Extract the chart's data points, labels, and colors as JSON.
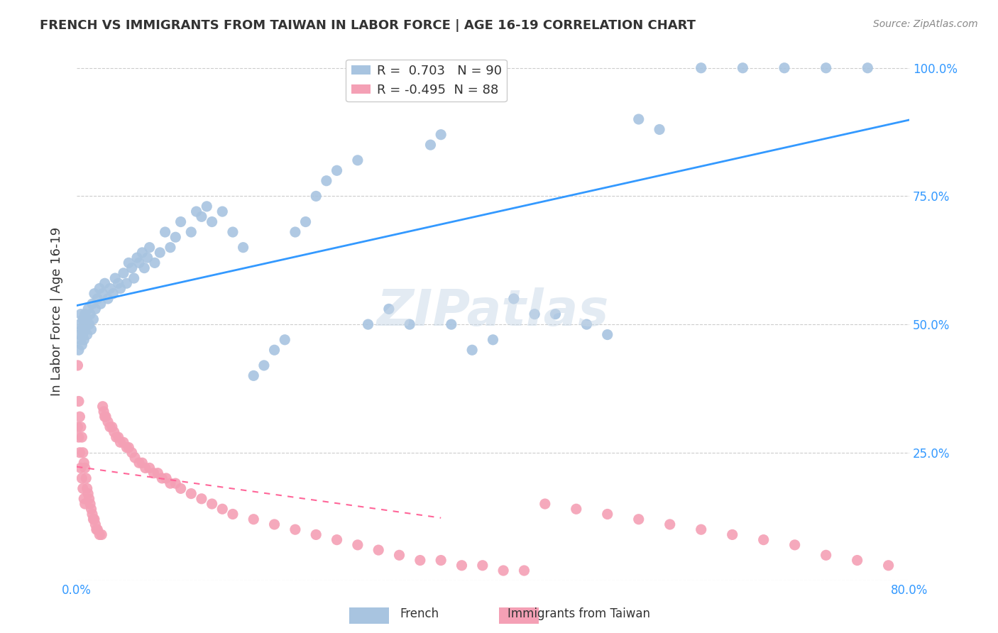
{
  "title": "FRENCH VS IMMIGRANTS FROM TAIWAN IN LABOR FORCE | AGE 16-19 CORRELATION CHART",
  "source": "Source: ZipAtlas.com",
  "xlabel_bottom": "",
  "ylabel": "In Labor Force | Age 16-19",
  "x_min": 0.0,
  "x_max": 0.8,
  "y_min": 0.0,
  "y_max": 1.05,
  "x_ticks": [
    0.0,
    0.1,
    0.2,
    0.3,
    0.4,
    0.5,
    0.6,
    0.7,
    0.8
  ],
  "x_tick_labels": [
    "0.0%",
    "",
    "",
    "",
    "",
    "",
    "",
    "",
    "80.0%"
  ],
  "y_ticks": [
    0.0,
    0.25,
    0.5,
    0.75,
    1.0
  ],
  "y_tick_labels": [
    "",
    "25.0%",
    "50.0%",
    "75.0%",
    "100.0%"
  ],
  "french_R": 0.703,
  "french_N": 90,
  "taiwan_R": -0.495,
  "taiwan_N": 88,
  "french_color": "#a8c4e0",
  "french_line_color": "#3399ff",
  "taiwan_color": "#f4a0b5",
  "taiwan_line_color": "#ff6699",
  "watermark": "ZIPatlas",
  "watermark_color": "#c8d8e8",
  "legend_french_label": "French",
  "legend_taiwan_label": "Immigrants from Taiwan",
  "french_scatter_x": [
    0.002,
    0.003,
    0.003,
    0.004,
    0.004,
    0.005,
    0.005,
    0.006,
    0.006,
    0.007,
    0.007,
    0.008,
    0.008,
    0.009,
    0.01,
    0.01,
    0.011,
    0.012,
    0.013,
    0.014,
    0.015,
    0.016,
    0.017,
    0.018,
    0.02,
    0.022,
    0.023,
    0.025,
    0.027,
    0.03,
    0.032,
    0.035,
    0.037,
    0.04,
    0.042,
    0.045,
    0.048,
    0.05,
    0.053,
    0.055,
    0.058,
    0.06,
    0.063,
    0.065,
    0.068,
    0.07,
    0.075,
    0.08,
    0.085,
    0.09,
    0.095,
    0.1,
    0.11,
    0.115,
    0.12,
    0.125,
    0.13,
    0.14,
    0.15,
    0.16,
    0.17,
    0.18,
    0.19,
    0.2,
    0.21,
    0.22,
    0.23,
    0.24,
    0.25,
    0.27,
    0.28,
    0.3,
    0.32,
    0.34,
    0.35,
    0.36,
    0.38,
    0.4,
    0.42,
    0.44,
    0.46,
    0.49,
    0.51,
    0.54,
    0.56,
    0.6,
    0.64,
    0.68,
    0.72,
    0.76
  ],
  "french_scatter_y": [
    0.45,
    0.5,
    0.48,
    0.47,
    0.52,
    0.46,
    0.49,
    0.51,
    0.48,
    0.5,
    0.47,
    0.52,
    0.49,
    0.5,
    0.48,
    0.51,
    0.53,
    0.5,
    0.52,
    0.49,
    0.54,
    0.51,
    0.56,
    0.53,
    0.55,
    0.57,
    0.54,
    0.56,
    0.58,
    0.55,
    0.57,
    0.56,
    0.59,
    0.58,
    0.57,
    0.6,
    0.58,
    0.62,
    0.61,
    0.59,
    0.63,
    0.62,
    0.64,
    0.61,
    0.63,
    0.65,
    0.62,
    0.64,
    0.68,
    0.65,
    0.67,
    0.7,
    0.68,
    0.72,
    0.71,
    0.73,
    0.7,
    0.72,
    0.68,
    0.65,
    0.4,
    0.42,
    0.45,
    0.47,
    0.68,
    0.7,
    0.75,
    0.78,
    0.8,
    0.82,
    0.5,
    0.53,
    0.5,
    0.85,
    0.87,
    0.5,
    0.45,
    0.47,
    0.55,
    0.52,
    0.52,
    0.5,
    0.48,
    0.9,
    0.88,
    1.0,
    1.0,
    1.0,
    1.0,
    1.0
  ],
  "taiwan_scatter_x": [
    0.001,
    0.001,
    0.002,
    0.002,
    0.003,
    0.003,
    0.004,
    0.004,
    0.005,
    0.005,
    0.006,
    0.006,
    0.007,
    0.007,
    0.008,
    0.008,
    0.009,
    0.01,
    0.011,
    0.012,
    0.013,
    0.014,
    0.015,
    0.016,
    0.017,
    0.018,
    0.019,
    0.02,
    0.022,
    0.024,
    0.025,
    0.026,
    0.027,
    0.028,
    0.03,
    0.032,
    0.034,
    0.036,
    0.038,
    0.04,
    0.042,
    0.045,
    0.048,
    0.05,
    0.053,
    0.056,
    0.06,
    0.063,
    0.066,
    0.07,
    0.074,
    0.078,
    0.082,
    0.086,
    0.09,
    0.095,
    0.1,
    0.11,
    0.12,
    0.13,
    0.14,
    0.15,
    0.17,
    0.19,
    0.21,
    0.23,
    0.25,
    0.27,
    0.29,
    0.31,
    0.33,
    0.35,
    0.37,
    0.39,
    0.41,
    0.43,
    0.45,
    0.48,
    0.51,
    0.54,
    0.57,
    0.6,
    0.63,
    0.66,
    0.69,
    0.72,
    0.75,
    0.78
  ],
  "taiwan_scatter_y": [
    0.42,
    0.3,
    0.35,
    0.28,
    0.32,
    0.25,
    0.3,
    0.22,
    0.28,
    0.2,
    0.25,
    0.18,
    0.23,
    0.16,
    0.22,
    0.15,
    0.2,
    0.18,
    0.17,
    0.16,
    0.15,
    0.14,
    0.13,
    0.12,
    0.12,
    0.11,
    0.1,
    0.1,
    0.09,
    0.09,
    0.34,
    0.33,
    0.32,
    0.32,
    0.31,
    0.3,
    0.3,
    0.29,
    0.28,
    0.28,
    0.27,
    0.27,
    0.26,
    0.26,
    0.25,
    0.24,
    0.23,
    0.23,
    0.22,
    0.22,
    0.21,
    0.21,
    0.2,
    0.2,
    0.19,
    0.19,
    0.18,
    0.17,
    0.16,
    0.15,
    0.14,
    0.13,
    0.12,
    0.11,
    0.1,
    0.09,
    0.08,
    0.07,
    0.06,
    0.05,
    0.04,
    0.04,
    0.03,
    0.03,
    0.02,
    0.02,
    0.15,
    0.14,
    0.13,
    0.12,
    0.11,
    0.1,
    0.09,
    0.08,
    0.07,
    0.05,
    0.04,
    0.03
  ]
}
